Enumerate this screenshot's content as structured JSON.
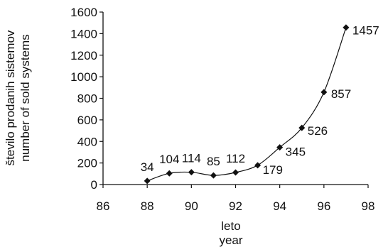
{
  "chart_data": {
    "type": "line",
    "title": "",
    "xlabel": [
      "leto",
      "year"
    ],
    "ylabel": [
      "število prodanih sistemov",
      "number of sold systems"
    ],
    "xlim": [
      86,
      98
    ],
    "ylim": [
      0,
      1600
    ],
    "xticks": [
      86,
      88,
      90,
      92,
      94,
      96,
      98
    ],
    "yticks": [
      0,
      200,
      400,
      600,
      800,
      1000,
      1200,
      1400,
      1600
    ],
    "grid": false,
    "marker": "diamond",
    "line_color": "#111111",
    "series": [
      {
        "x": [
          88,
          89,
          90,
          91,
          92,
          93,
          94,
          95,
          96,
          97
        ],
        "values": [
          34,
          104,
          114,
          85,
          112,
          179,
          345,
          526,
          857,
          1457
        ],
        "labels": [
          "34",
          "104",
          "114",
          "85",
          "112",
          "179",
          "345",
          "526",
          "857",
          "1457"
        ]
      }
    ]
  }
}
